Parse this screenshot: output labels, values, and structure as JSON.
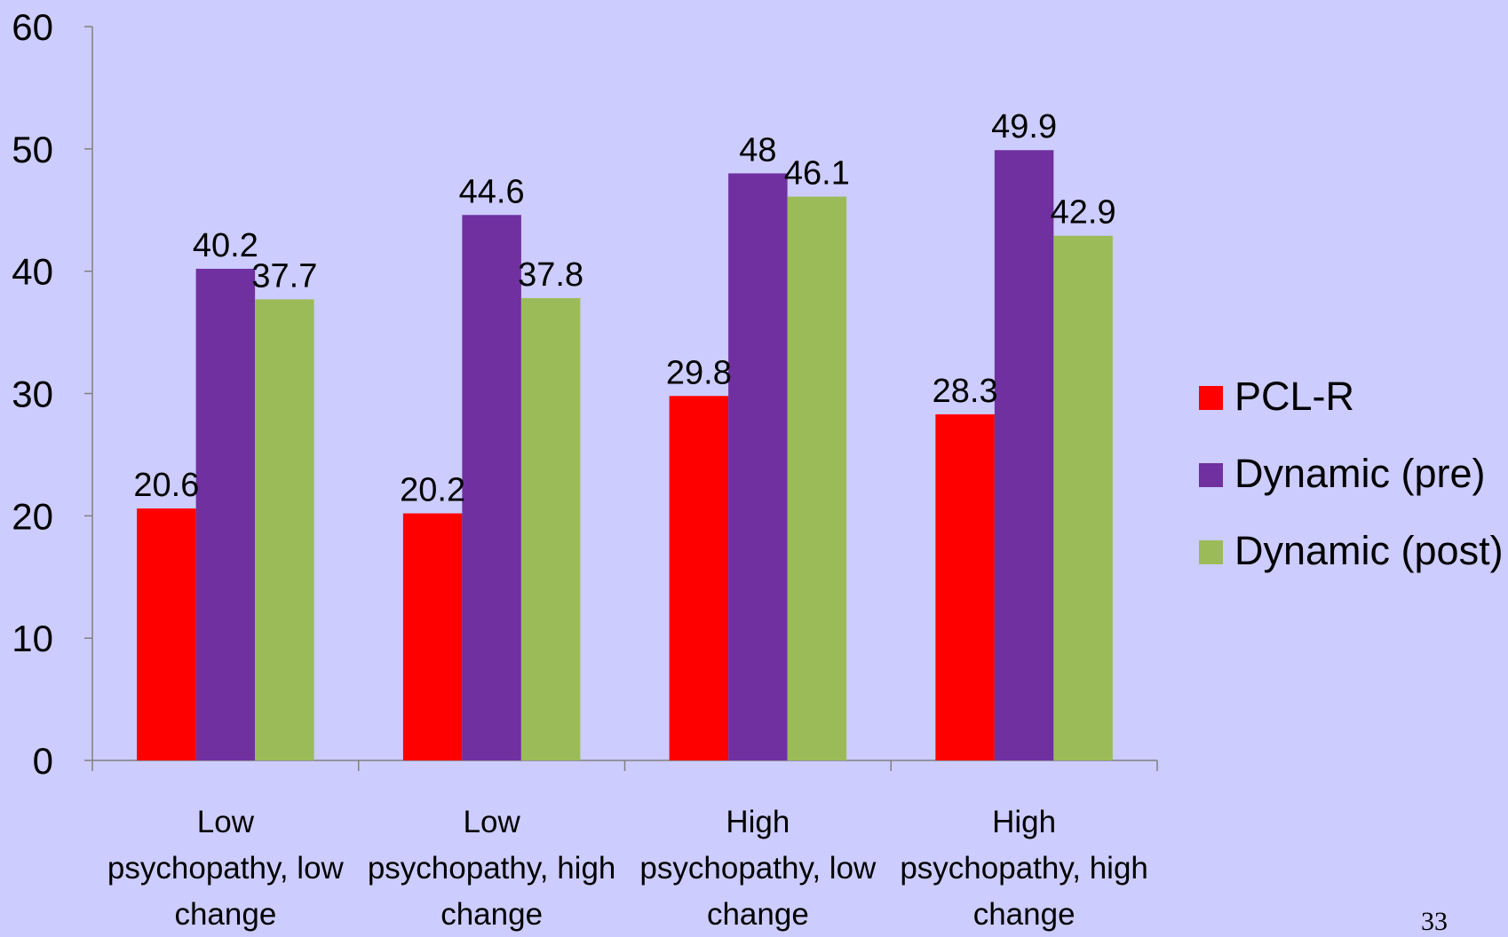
{
  "page_number": "33",
  "chart_data": {
    "type": "bar",
    "title": "",
    "xlabel": "",
    "ylabel": "",
    "ylim": [
      0,
      60
    ],
    "yticks": [
      0,
      10,
      20,
      30,
      40,
      50,
      60
    ],
    "grid": false,
    "legend_position": "right",
    "categories": [
      [
        "Low",
        "psychopathy, low",
        "change"
      ],
      [
        "Low",
        "psychopathy, high",
        "change"
      ],
      [
        "High",
        "psychopathy, low",
        "change"
      ],
      [
        "High",
        "psychopathy, high",
        "change"
      ]
    ],
    "series": [
      {
        "name": "PCL-R",
        "color": "#ff0000",
        "values": [
          20.6,
          20.2,
          29.8,
          28.3
        ]
      },
      {
        "name": "Dynamic (pre)",
        "color": "#7030a0",
        "values": [
          40.2,
          44.6,
          48,
          49.9
        ]
      },
      {
        "name": "Dynamic (post)",
        "color": "#9bbb59",
        "values": [
          37.7,
          37.8,
          46.1,
          42.9
        ]
      }
    ]
  }
}
